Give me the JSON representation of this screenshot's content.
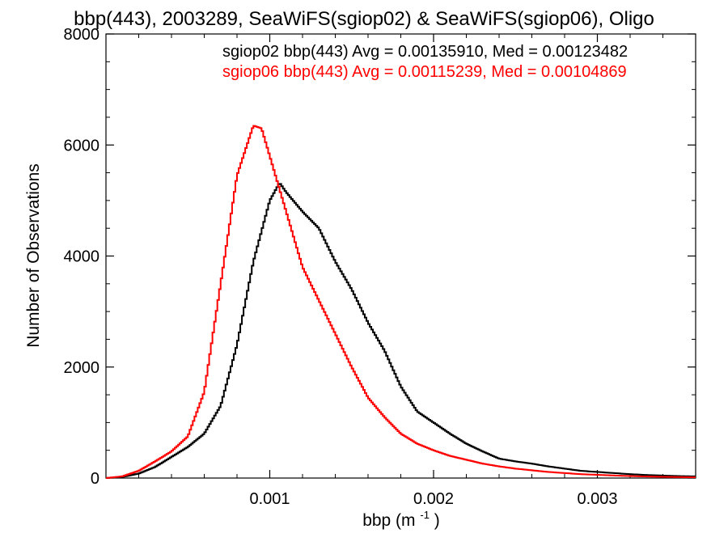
{
  "chart_data": {
    "type": "line",
    "title": "bbp(443), 2003289, SeaWiFS(sgiop02) & SeaWiFS(sgiop06), Oligo",
    "xlabel": "bbp (m",
    "xlabel_sup": "-1",
    "xlabel_close": ")",
    "ylabel": "Number of Observations",
    "xlim": [
      0.0,
      0.0036
    ],
    "ylim": [
      0,
      8000
    ],
    "x_ticks": [
      0.001,
      0.002,
      0.003
    ],
    "x_tick_labels": [
      "0.001",
      "0.002",
      "0.003"
    ],
    "y_ticks": [
      0,
      2000,
      4000,
      6000,
      8000
    ],
    "y_tick_labels": [
      "0",
      "2000",
      "4000",
      "6000",
      "8000"
    ],
    "grid": false,
    "legend_position": "top-right",
    "series": [
      {
        "name": "sgiop02",
        "label": "sgiop02 bbp(443) Avg = 0.00135910, Med = 0.00123482",
        "color": "#000000",
        "points": [
          [
            0.0,
            0
          ],
          [
            0.0001,
            20
          ],
          [
            0.0002,
            80
          ],
          [
            0.0003,
            200
          ],
          [
            0.0004,
            380
          ],
          [
            0.0005,
            560
          ],
          [
            0.0006,
            800
          ],
          [
            0.0007,
            1300
          ],
          [
            0.0008,
            2400
          ],
          [
            0.0009,
            3900
          ],
          [
            0.001,
            5000
          ],
          [
            0.00106,
            5320
          ],
          [
            0.0011,
            5150
          ],
          [
            0.0012,
            4800
          ],
          [
            0.0013,
            4500
          ],
          [
            0.0014,
            3900
          ],
          [
            0.0015,
            3400
          ],
          [
            0.0016,
            2800
          ],
          [
            0.0017,
            2300
          ],
          [
            0.0018,
            1650
          ],
          [
            0.0019,
            1200
          ],
          [
            0.002,
            1000
          ],
          [
            0.0021,
            800
          ],
          [
            0.0022,
            620
          ],
          [
            0.0023,
            480
          ],
          [
            0.0024,
            350
          ],
          [
            0.0025,
            300
          ],
          [
            0.0026,
            260
          ],
          [
            0.0027,
            210
          ],
          [
            0.0028,
            170
          ],
          [
            0.0029,
            130
          ],
          [
            0.003,
            110
          ],
          [
            0.0031,
            90
          ],
          [
            0.0032,
            70
          ],
          [
            0.0033,
            55
          ],
          [
            0.0034,
            45
          ],
          [
            0.0035,
            35
          ],
          [
            0.0036,
            30
          ]
        ]
      },
      {
        "name": "sgiop06",
        "label": "sgiop06 bbp(443) Avg = 0.00115239, Med = 0.00104869",
        "color": "#ff0000",
        "points": [
          [
            0.0,
            0
          ],
          [
            0.0001,
            30
          ],
          [
            0.0002,
            130
          ],
          [
            0.0003,
            300
          ],
          [
            0.0004,
            480
          ],
          [
            0.0005,
            750
          ],
          [
            0.0006,
            1550
          ],
          [
            0.0007,
            3500
          ],
          [
            0.0008,
            5450
          ],
          [
            0.0009,
            6350
          ],
          [
            0.00095,
            6300
          ],
          [
            0.001,
            5800
          ],
          [
            0.0011,
            4800
          ],
          [
            0.0012,
            3800
          ],
          [
            0.0013,
            3200
          ],
          [
            0.0014,
            2600
          ],
          [
            0.0015,
            2000
          ],
          [
            0.0016,
            1450
          ],
          [
            0.0017,
            1100
          ],
          [
            0.0018,
            800
          ],
          [
            0.0019,
            620
          ],
          [
            0.002,
            500
          ],
          [
            0.0021,
            400
          ],
          [
            0.0022,
            330
          ],
          [
            0.0023,
            260
          ],
          [
            0.0024,
            210
          ],
          [
            0.0025,
            170
          ],
          [
            0.0026,
            140
          ],
          [
            0.0027,
            110
          ],
          [
            0.0028,
            90
          ],
          [
            0.0029,
            70
          ],
          [
            0.003,
            58
          ],
          [
            0.0031,
            46
          ],
          [
            0.0032,
            36
          ],
          [
            0.0033,
            28
          ],
          [
            0.0034,
            22
          ],
          [
            0.0035,
            18
          ],
          [
            0.0036,
            14
          ]
        ]
      }
    ]
  }
}
